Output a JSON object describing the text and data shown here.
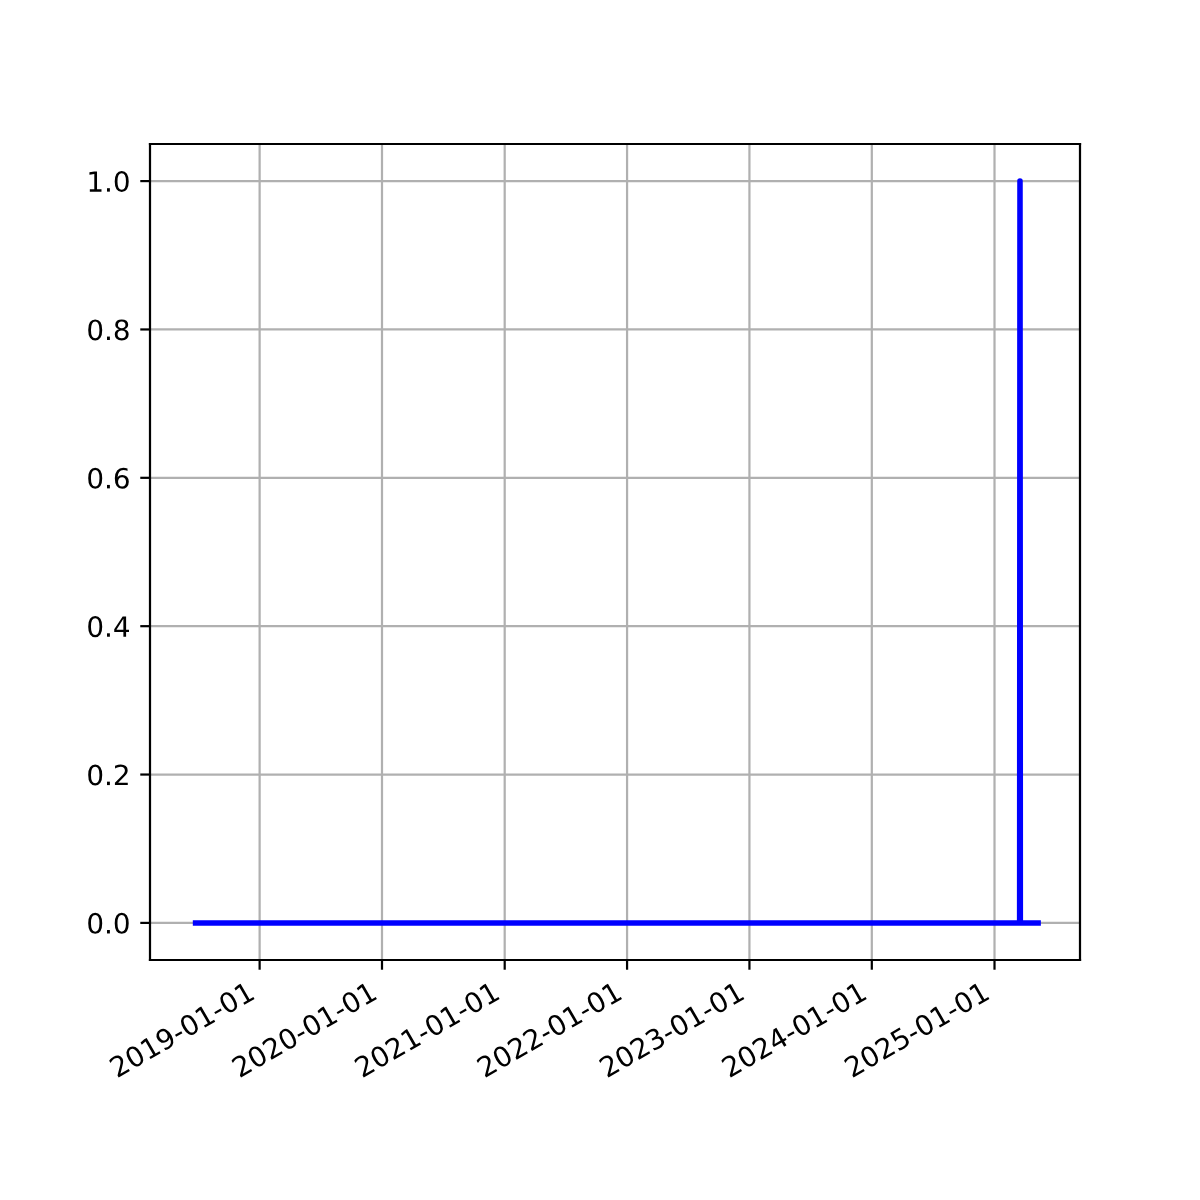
{
  "chart_data": {
    "type": "line",
    "x": [
      "2018-06-24",
      "2025-03-17",
      "2025-03-18",
      "2025-03-19",
      "2025-05-11"
    ],
    "series": [
      {
        "color": "#0000ff",
        "values": [
          0,
          0,
          1,
          0,
          0
        ]
      }
    ],
    "xlim": [
      "2018-02-08",
      "2025-09-13"
    ],
    "xticks": [
      "2019-01-01",
      "2020-01-01",
      "2021-01-01",
      "2022-01-01",
      "2023-01-01",
      "2024-01-01",
      "2025-01-01"
    ],
    "ylim": [
      -0.05,
      1.05
    ],
    "yticks": [
      {
        "value": 0,
        "label": "0.0"
      },
      {
        "value": 0.2,
        "label": "0.2"
      },
      {
        "value": 0.4,
        "label": "0.4"
      },
      {
        "value": 0.6,
        "label": "0.6"
      },
      {
        "value": 0.8,
        "label": "0.8"
      },
      {
        "value": 1,
        "label": "1.0"
      }
    ],
    "grid": true,
    "marker": "none",
    "line_style": "solid"
  }
}
